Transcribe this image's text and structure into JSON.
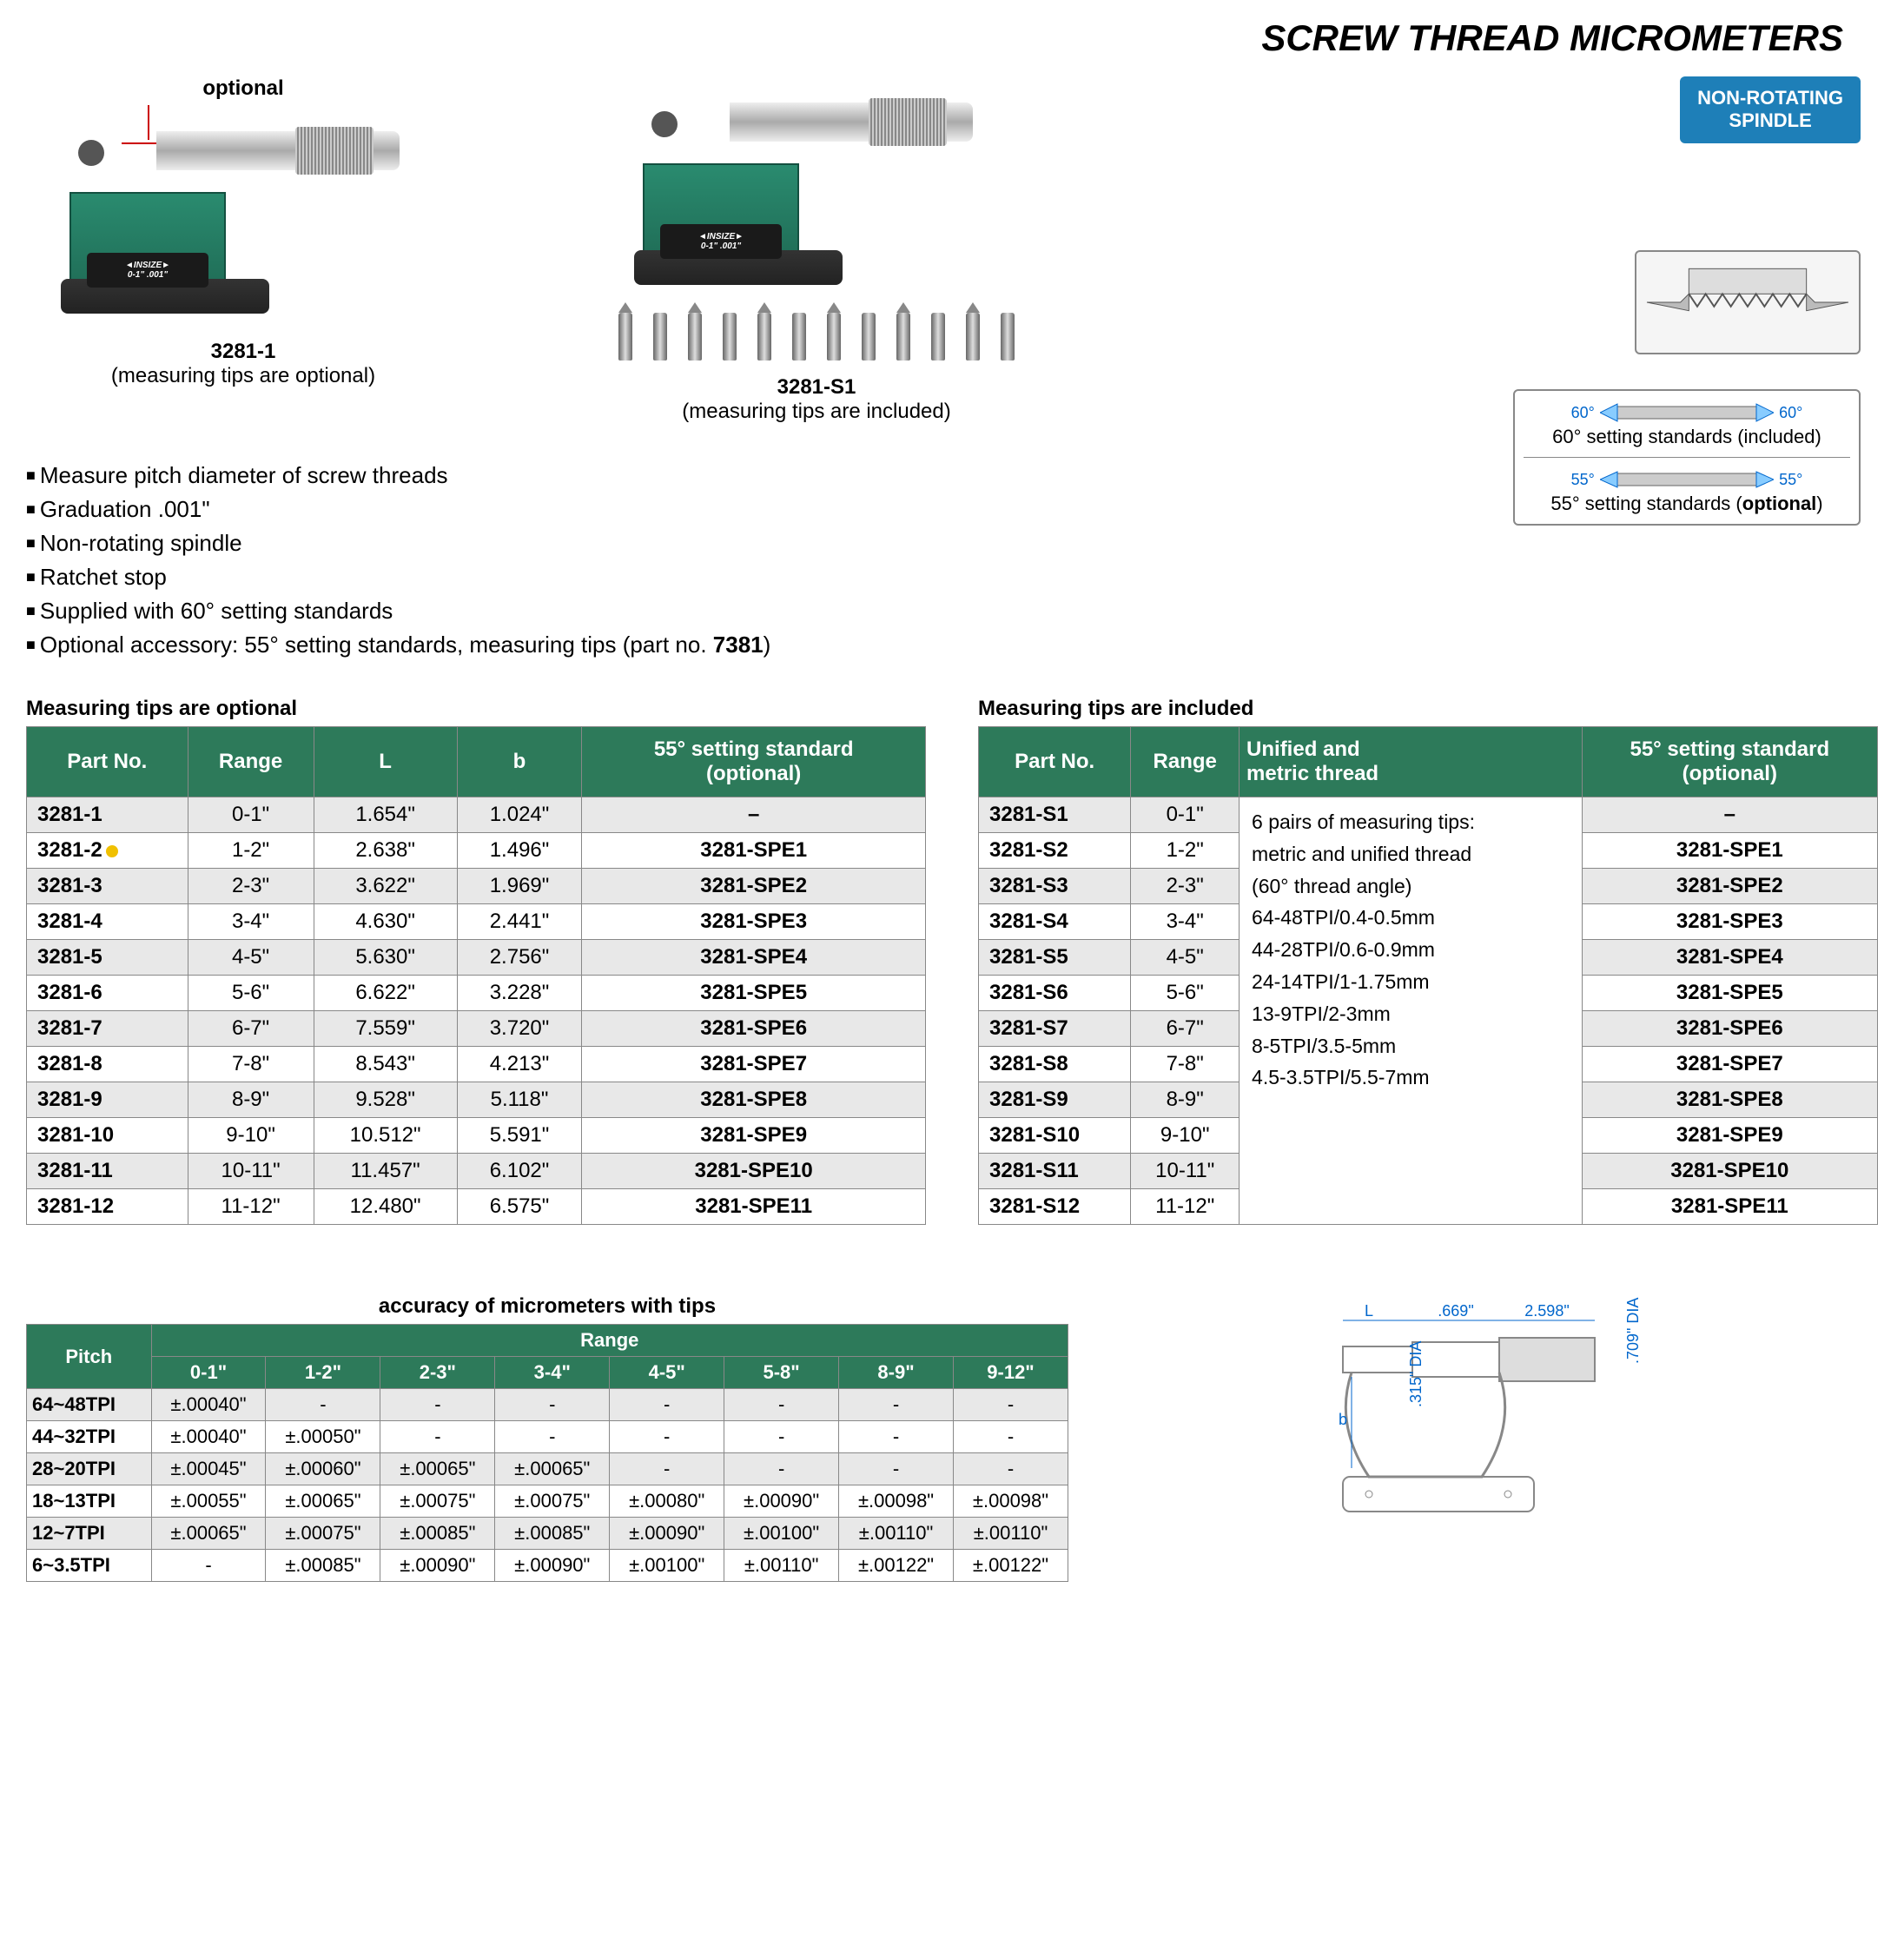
{
  "title": "SCREW THREAD MICROMETERS",
  "badge": {
    "line1": "NON-ROTATING",
    "line2": "SPINDLE",
    "bg": "#1e7fb8"
  },
  "product_left": {
    "optional_label": "optional",
    "model": "3281-1",
    "caption": "(measuring tips are optional)",
    "plate_brand": "◄INSIZE►",
    "plate_range": "0-1\"  .001\""
  },
  "product_mid": {
    "model": "3281-S1",
    "caption": "(measuring tips are included)",
    "plate_brand": "◄INSIZE►",
    "plate_range": "0-1\"  .001\""
  },
  "standards": {
    "angle60": "60°",
    "line60": "60° setting standards (included)",
    "angle55": "55°",
    "line55_pre": "55° setting standards (",
    "line55_bold": "optional",
    "line55_post": ")"
  },
  "bullets": [
    "Measure pitch diameter of screw threads",
    "Graduation .001\"",
    "Non-rotating spindle",
    "Ratchet stop",
    "Supplied with 60° setting standards"
  ],
  "bullet_accessory_pre": "Optional accessory: 55° setting standards, measuring tips (part no. ",
  "bullet_accessory_bold": "7381",
  "bullet_accessory_post": ")",
  "table1": {
    "caption": "Measuring tips are optional",
    "headers": [
      "Part No.",
      "Range",
      "L",
      "b",
      "55° setting standard\n(optional)"
    ],
    "rows": [
      [
        "3281-1",
        "0-1\"",
        "1.654\"",
        "1.024\"",
        "–"
      ],
      [
        "3281-2",
        "1-2\"",
        "2.638\"",
        "1.496\"",
        "3281-SPE1"
      ],
      [
        "3281-3",
        "2-3\"",
        "3.622\"",
        "1.969\"",
        "3281-SPE2"
      ],
      [
        "3281-4",
        "3-4\"",
        "4.630\"",
        "2.441\"",
        "3281-SPE3"
      ],
      [
        "3281-5",
        "4-5\"",
        "5.630\"",
        "2.756\"",
        "3281-SPE4"
      ],
      [
        "3281-6",
        "5-6\"",
        "6.622\"",
        "3.228\"",
        "3281-SPE5"
      ],
      [
        "3281-7",
        "6-7\"",
        "7.559\"",
        "3.720\"",
        "3281-SPE6"
      ],
      [
        "3281-8",
        "7-8\"",
        "8.543\"",
        "4.213\"",
        "3281-SPE7"
      ],
      [
        "3281-9",
        "8-9\"",
        "9.528\"",
        "5.118\"",
        "3281-SPE8"
      ],
      [
        "3281-10",
        "9-10\"",
        "10.512\"",
        "5.591\"",
        "3281-SPE9"
      ],
      [
        "3281-11",
        "10-11\"",
        "11.457\"",
        "6.102\"",
        "3281-SPE10"
      ],
      [
        "3281-12",
        "11-12\"",
        "12.480\"",
        "6.575\"",
        "3281-SPE11"
      ]
    ],
    "highlight_row": 1
  },
  "table2": {
    "caption": "Measuring tips are included",
    "headers": [
      "Part No.",
      "Range",
      "Unified and\nmetric thread",
      "55° setting standard\n(optional)"
    ],
    "unified_text": "6 pairs of measuring tips:\nmetric and unified thread\n(60° thread angle)\n64-48TPI/0.4-0.5mm\n44-28TPI/0.6-0.9mm\n24-14TPI/1-1.75mm\n13-9TPI/2-3mm\n8-5TPI/3.5-5mm\n4.5-3.5TPI/5.5-7mm",
    "rows": [
      [
        "3281-S1",
        "0-1\"",
        "–"
      ],
      [
        "3281-S2",
        "1-2\"",
        "3281-SPE1"
      ],
      [
        "3281-S3",
        "2-3\"",
        "3281-SPE2"
      ],
      [
        "3281-S4",
        "3-4\"",
        "3281-SPE3"
      ],
      [
        "3281-S5",
        "4-5\"",
        "3281-SPE4"
      ],
      [
        "3281-S6",
        "5-6\"",
        "3281-SPE5"
      ],
      [
        "3281-S7",
        "6-7\"",
        "3281-SPE6"
      ],
      [
        "3281-S8",
        "7-8\"",
        "3281-SPE7"
      ],
      [
        "3281-S9",
        "8-9\"",
        "3281-SPE8"
      ],
      [
        "3281-S10",
        "9-10\"",
        "3281-SPE9"
      ],
      [
        "3281-S11",
        "10-11\"",
        "3281-SPE10"
      ],
      [
        "3281-S12",
        "11-12\"",
        "3281-SPE11"
      ]
    ]
  },
  "accuracy": {
    "title": "accuracy of micrometers with tips",
    "corner": "Pitch",
    "super_header": "Range",
    "range_headers": [
      "0-1\"",
      "1-2\"",
      "2-3\"",
      "3-4\"",
      "4-5\"",
      "5-8\"",
      "8-9\"",
      "9-12\""
    ],
    "rows": [
      [
        "64~48TPI",
        "±.00040\"",
        "-",
        "-",
        "-",
        "-",
        "-",
        "-",
        "-"
      ],
      [
        "44~32TPI",
        "±.00040\"",
        "±.00050\"",
        "-",
        "-",
        "-",
        "-",
        "-",
        "-"
      ],
      [
        "28~20TPI",
        "±.00045\"",
        "±.00060\"",
        "±.00065\"",
        "±.00065\"",
        "-",
        "-",
        "-",
        "-"
      ],
      [
        "18~13TPI",
        "±.00055\"",
        "±.00065\"",
        "±.00075\"",
        "±.00075\"",
        "±.00080\"",
        "±.00090\"",
        "±.00098\"",
        "±.00098\""
      ],
      [
        "12~7TPI",
        "±.00065\"",
        "±.00075\"",
        "±.00085\"",
        "±.00085\"",
        "±.00090\"",
        "±.00100\"",
        "±.00110\"",
        "±.00110\""
      ],
      [
        "6~3.5TPI",
        "-",
        "±.00085\"",
        "±.00090\"",
        "±.00090\"",
        "±.00100\"",
        "±.00110\"",
        "±.00122\"",
        "±.00122\""
      ]
    ]
  },
  "dimensions": {
    "L": "L",
    "d669": ".669\"",
    "d2598": "2.598\"",
    "d315": ".315\"\nDIA",
    "d709": ".709\" DIA",
    "b": "b"
  },
  "colors": {
    "header_bg": "#2d7a5a",
    "row_odd": "#e8e8e8",
    "row_even": "#ffffff",
    "border": "#888888",
    "badge_bg": "#1e7fb8",
    "dim_color": "#0066cc",
    "red": "#cc0000",
    "dot": "#f0c000"
  }
}
